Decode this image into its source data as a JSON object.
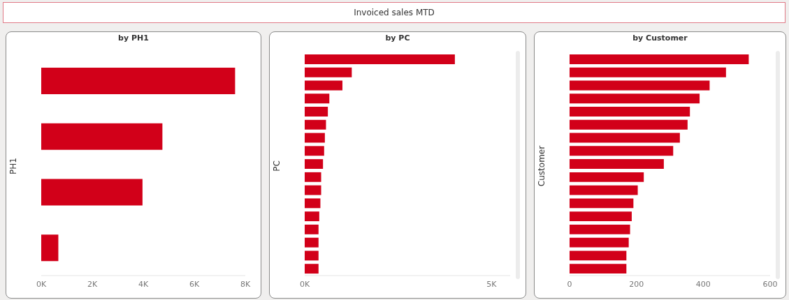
{
  "chart_data": [
    {
      "type": "other",
      "title": "Invoiced sales MTD"
    },
    {
      "type": "bar",
      "orientation": "horizontal",
      "title": "by PH1",
      "ylabel": "PH1",
      "categories": [
        null,
        null,
        null,
        null
      ],
      "values": [
        7600,
        4750,
        3970,
        670
      ],
      "color": "#d20019",
      "xlim": [
        0,
        8000
      ],
      "xticks": [
        {
          "value": 0,
          "label": "0K"
        },
        {
          "value": 2000,
          "label": "2K"
        },
        {
          "value": 4000,
          "label": "4K"
        },
        {
          "value": 6000,
          "label": "6K"
        },
        {
          "value": 8000,
          "label": "8K"
        }
      ],
      "tick_labels": "x",
      "grid": false
    },
    {
      "type": "bar",
      "orientation": "horizontal",
      "title": "by PC",
      "ylabel": "PC",
      "categories": [
        null,
        null,
        null,
        null,
        null,
        null,
        null,
        null,
        null,
        null,
        null,
        null,
        null,
        null,
        null,
        null,
        null
      ],
      "values": [
        4020,
        1260,
        1010,
        660,
        620,
        570,
        540,
        520,
        490,
        440,
        440,
        420,
        390,
        370,
        370,
        370,
        370
      ],
      "color": "#d20019",
      "xlim": [
        0,
        5500
      ],
      "xticks": [
        {
          "value": 0,
          "label": "0K"
        },
        {
          "value": 5000,
          "label": "5K"
        }
      ],
      "tick_labels": "x",
      "grid": false
    },
    {
      "type": "bar",
      "orientation": "horizontal",
      "title": "by Customer",
      "ylabel": "Customer",
      "categories": [
        null,
        null,
        null,
        null,
        null,
        null,
        null,
        null,
        null,
        null,
        null,
        null,
        null,
        null,
        null,
        null,
        null
      ],
      "values": [
        536,
        468,
        419,
        389,
        360,
        353,
        330,
        310,
        282,
        222,
        204,
        191,
        186,
        181,
        177,
        170,
        170
      ],
      "color": "#d20019",
      "xlim": [
        0,
        600
      ],
      "xticks": [
        0,
        200,
        400,
        600
      ],
      "tick_labels": "x",
      "grid": false
    }
  ]
}
